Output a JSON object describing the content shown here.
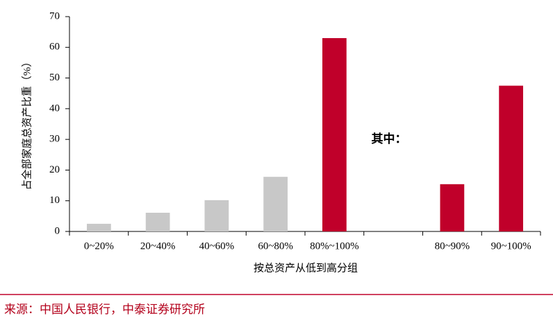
{
  "chart_data": {
    "type": "bar",
    "y_label": "占全部家庭总资产比重（%）",
    "x_label": "按总资产从低到高分组",
    "annotation": "其中：",
    "source": "来源：中国人民银行，中泰证券研究所",
    "categories": [
      "0~20%",
      "20~40%",
      "40~60%",
      "60~80%",
      "80%~100%",
      null,
      "80~90%",
      "90~100%"
    ],
    "values": [
      2.5,
      6.1,
      10.2,
      17.8,
      63,
      null,
      15.4,
      47.5
    ],
    "colors": [
      "#c8c8c8",
      "#c8c8c8",
      "#c8c8c8",
      "#c8c8c8",
      "#c0002a",
      null,
      "#c0002a",
      "#c0002a"
    ],
    "ylim": [
      0,
      70
    ],
    "yticks": [
      0,
      10,
      20,
      30,
      40,
      50,
      60,
      70
    ],
    "grid": false
  }
}
